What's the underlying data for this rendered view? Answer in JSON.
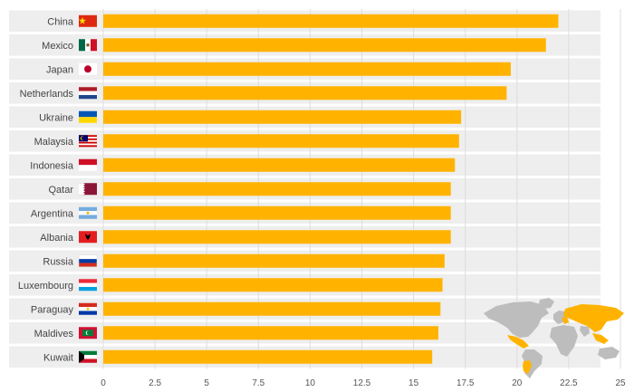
{
  "colors": {
    "bar": "#FFB300",
    "row_band": "#EEEEEE",
    "grid": "#DDDDDD",
    "map_land": "#BDBDBD",
    "map_highlight": "#FFB300"
  },
  "chart_data": {
    "type": "bar",
    "orientation": "horizontal",
    "categories": [
      "China",
      "Mexico",
      "Japan",
      "Netherlands",
      "Ukraine",
      "Malaysia",
      "Indonesia",
      "Qatar",
      "Argentina",
      "Albania",
      "Russia",
      "Luxembourg",
      "Paraguay",
      "Maldives",
      "Kuwait"
    ],
    "values": [
      22.0,
      21.4,
      19.7,
      19.5,
      17.3,
      17.2,
      17.0,
      16.8,
      16.8,
      16.8,
      16.5,
      16.4,
      16.3,
      16.2,
      15.9
    ],
    "icons": [
      "flag-china-icon",
      "flag-mexico-icon",
      "flag-japan-icon",
      "flag-netherlands-icon",
      "flag-ukraine-icon",
      "flag-malaysia-icon",
      "flag-indonesia-icon",
      "flag-qatar-icon",
      "flag-argentina-icon",
      "flag-albania-icon",
      "flag-russia-icon",
      "flag-luxembourg-icon",
      "flag-paraguay-icon",
      "flag-maldives-icon",
      "flag-kuwait-icon"
    ],
    "xlim": [
      0,
      25
    ],
    "xticks": [
      "0",
      "2.5",
      "5",
      "7.5",
      "10",
      "12.5",
      "15",
      "17.5",
      "20",
      "22.5",
      "25"
    ],
    "grid": true,
    "title": "",
    "xlabel": "",
    "ylabel": "",
    "inset": "world-map-highlight"
  }
}
